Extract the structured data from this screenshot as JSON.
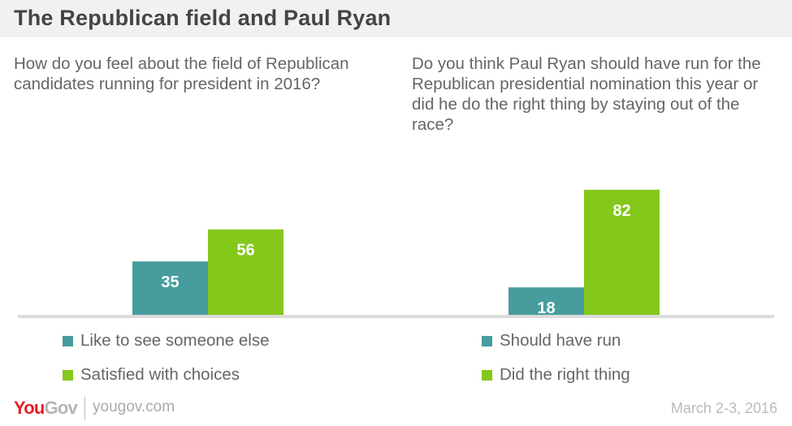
{
  "title": "The Republican field and Paul Ryan",
  "colors": {
    "teal": "#479c9e",
    "green": "#84c81b",
    "baseline": "#dcdcdc"
  },
  "footer": {
    "logo_you": "You",
    "logo_gov": "Gov",
    "site": "yougov.com",
    "date": "March 2-3, 2016"
  },
  "chart_data": [
    {
      "type": "bar",
      "title": "How do you feel about the field of Republican candidates running for president in 2016?",
      "categories": [
        "Like to see someone else",
        "Satisfied with choices"
      ],
      "values": [
        35,
        56
      ],
      "colors": [
        "#479c9e",
        "#84c81b"
      ],
      "legend": [
        "Like to see someone else",
        "Satisfied with choices"
      ],
      "legend_position": "bottom",
      "ylim": [
        0,
        100
      ],
      "grid": false
    },
    {
      "type": "bar",
      "title": "Do you think Paul Ryan should have run for the Republican presidential nomination this year or did he do the right thing by staying out of the race?",
      "categories": [
        "Should have run",
        "Did the right thing"
      ],
      "values": [
        18,
        82
      ],
      "colors": [
        "#479c9e",
        "#84c81b"
      ],
      "legend": [
        "Should have run",
        "Did the right thing"
      ],
      "legend_position": "bottom",
      "ylim": [
        0,
        100
      ],
      "grid": false
    }
  ]
}
